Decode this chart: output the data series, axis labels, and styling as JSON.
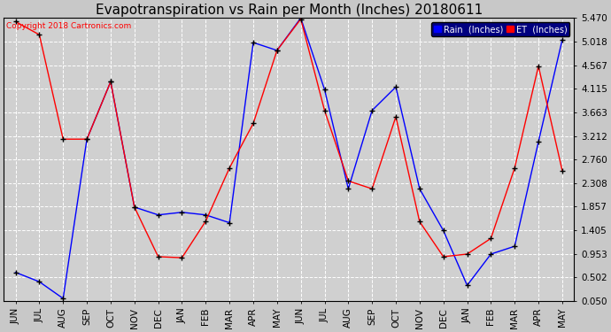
{
  "title": "Evapotranspiration vs Rain per Month (Inches) 20180611",
  "copyright": "Copyright 2018 Cartronics.com",
  "months": [
    "JUN",
    "JUL",
    "AUG",
    "SEP",
    "OCT",
    "NOV",
    "DEC",
    "JAN",
    "FEB",
    "MAR",
    "APR",
    "MAY",
    "JUN",
    "JUL",
    "AUG",
    "SEP",
    "OCT",
    "NOV",
    "DEC",
    "JAN",
    "FEB",
    "MAR",
    "APR",
    "MAY"
  ],
  "rain": [
    0.6,
    0.42,
    0.1,
    3.15,
    4.25,
    1.85,
    1.7,
    1.75,
    1.7,
    1.55,
    5.0,
    4.85,
    5.47,
    4.1,
    2.2,
    3.7,
    4.15,
    2.2,
    1.4,
    0.35,
    0.95,
    1.1,
    3.1,
    5.05
  ],
  "et": [
    5.4,
    5.15,
    3.15,
    3.15,
    4.25,
    1.85,
    0.9,
    0.88,
    1.58,
    2.6,
    3.45,
    4.85,
    5.45,
    3.7,
    2.35,
    2.2,
    3.58,
    1.57,
    0.9,
    0.95,
    1.25,
    2.6,
    4.55,
    2.55
  ],
  "ylim": [
    0.05,
    5.47
  ],
  "yticks": [
    0.05,
    0.502,
    0.953,
    1.405,
    1.857,
    2.308,
    2.76,
    3.212,
    3.663,
    4.115,
    4.567,
    5.018,
    5.47
  ],
  "rain_color": "#0000ff",
  "et_color": "#ff0000",
  "bg_color": "#c8c8c8",
  "plot_bg_color": "#d0d0d0",
  "grid_color": "#ffffff",
  "title_fontsize": 11,
  "tick_fontsize": 7.5,
  "legend_rain_label": "Rain  (Inches)",
  "legend_et_label": "ET  (Inches)"
}
